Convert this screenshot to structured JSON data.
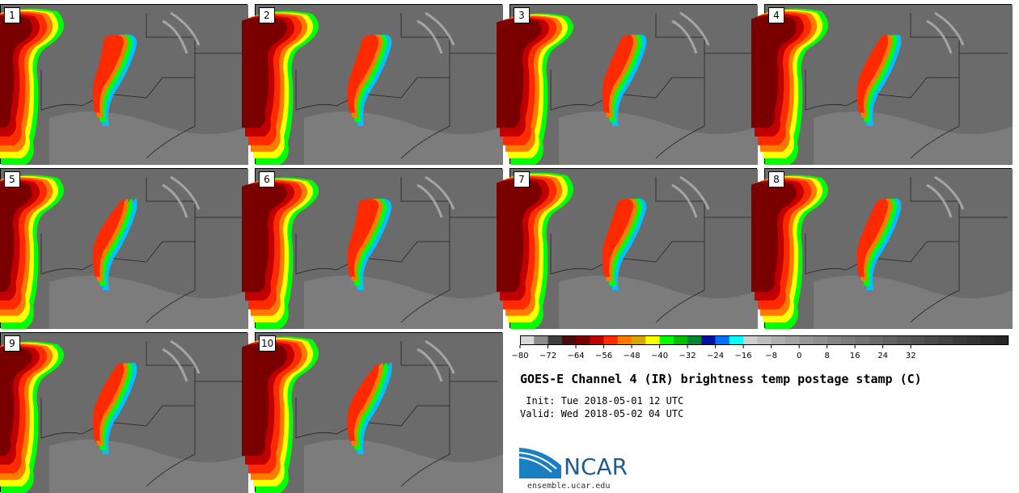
{
  "title": "GOES-E Channel 4 (IR) brightness temp postage stamp (C)",
  "init": " Init: Tue 2018-05-01 12 UTC",
  "valid": "Valid: Wed 2018-05-02 04 UTC",
  "panels": [
    {
      "label": "1"
    },
    {
      "label": "2"
    },
    {
      "label": "3"
    },
    {
      "label": "4"
    },
    {
      "label": "5"
    },
    {
      "label": "6"
    },
    {
      "label": "7"
    },
    {
      "label": "8"
    },
    {
      "label": "9"
    },
    {
      "label": "10"
    }
  ],
  "colorbar": {
    "ticks": [
      "−80",
      "−72",
      "−64",
      "−56",
      "−48",
      "−40",
      "−32",
      "−24",
      "−16",
      "−8",
      "0",
      "8",
      "16",
      "24",
      "32"
    ],
    "colors": [
      "#d9d9d9",
      "#8c8c8c",
      "#404040",
      "#4a0d0d",
      "#7a0000",
      "#c00000",
      "#ff2a00",
      "#ff7a00",
      "#d9a800",
      "#ffff00",
      "#00ff00",
      "#00c000",
      "#008a30",
      "#0010a0",
      "#0070ff",
      "#00ffff",
      "#cfcfcf",
      "#bdbdbd",
      "#afafaf",
      "#a3a3a3",
      "#989898",
      "#8e8e8e",
      "#848484",
      "#7b7b7b",
      "#727272",
      "#6a6a6a",
      "#626262",
      "#5a5a5a",
      "#525252",
      "#4a4a4a",
      "#424242",
      "#3a3a3a",
      "#333333",
      "#2c2c2c",
      "#262626"
    ]
  },
  "logo": {
    "text": "NCAR",
    "url": "ensemble.ucar.edu",
    "color": "#1d5c94"
  }
}
